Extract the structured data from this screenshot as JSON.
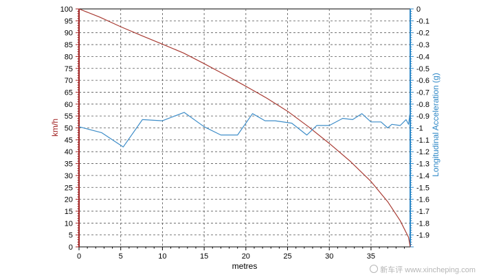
{
  "chart_data": {
    "type": "line",
    "xlabel": "metres",
    "ylabel_left": "km/h",
    "ylabel_right": "Longitudinal Acceleration (g)",
    "xlim": [
      0,
      39.7
    ],
    "ylim_left": [
      0,
      100
    ],
    "ylim_right": [
      -2.0,
      0
    ],
    "x_ticks": [
      0,
      5,
      10,
      15,
      20,
      25,
      30,
      35
    ],
    "y_ticks_left": [
      0,
      5,
      10,
      15,
      20,
      25,
      30,
      35,
      40,
      45,
      50,
      55,
      60,
      65,
      70,
      75,
      80,
      85,
      90,
      95,
      100
    ],
    "y_ticks_right": [
      "0",
      "-0.1",
      "-0.2",
      "-0.3",
      "-0.4",
      "-0.5",
      "-0.6",
      "-0.7",
      "-0.8",
      "-0.9",
      "-1",
      "-1.1",
      "-1.2",
      "-1.3",
      "-1.4",
      "-1.5",
      "-1.6",
      "-1.7",
      "-1.8",
      "-1.9"
    ],
    "grid": true,
    "colors": {
      "speed": "#a83a32",
      "accel": "#3c8cc8",
      "left_axis": "#a02020",
      "right_axis": "#2b86c6"
    },
    "series": [
      {
        "axis": "left",
        "x": [
          0,
          2.5,
          5,
          7.5,
          10,
          12.5,
          15,
          17.5,
          20,
          22.5,
          25,
          27.5,
          30,
          32.5,
          35,
          37,
          38.5,
          39.5,
          39.7
        ],
        "values": [
          100,
          96.5,
          92.5,
          88.8,
          85.2,
          81.5,
          77,
          72.3,
          67.5,
          62.5,
          57,
          50.5,
          43.5,
          36,
          27.5,
          19,
          11,
          4,
          0
        ]
      },
      {
        "axis": "right",
        "x": [
          0,
          2.7,
          4,
          5.3,
          7.6,
          10,
          12.6,
          15,
          17,
          18.2,
          19,
          20.8,
          22.3,
          23.5,
          25.5,
          27.3,
          28.5,
          30,
          31.6,
          32.8,
          33.9,
          35,
          36.2,
          37,
          37.5,
          38.5,
          39.2,
          39.5,
          39.7
        ],
        "values": [
          -0.99,
          -1.04,
          -1.1,
          -1.16,
          -0.93,
          -0.94,
          -0.87,
          -0.99,
          -1.06,
          -1.06,
          -1.06,
          -0.88,
          -0.94,
          -0.94,
          -0.96,
          -1.06,
          -0.98,
          -0.98,
          -0.92,
          -0.93,
          -0.88,
          -0.95,
          -0.95,
          -1.0,
          -0.97,
          -0.98,
          -0.93,
          -0.97,
          -0.86
        ]
      }
    ]
  },
  "watermark": {
    "text": "新车评 www.xincheping.com"
  }
}
